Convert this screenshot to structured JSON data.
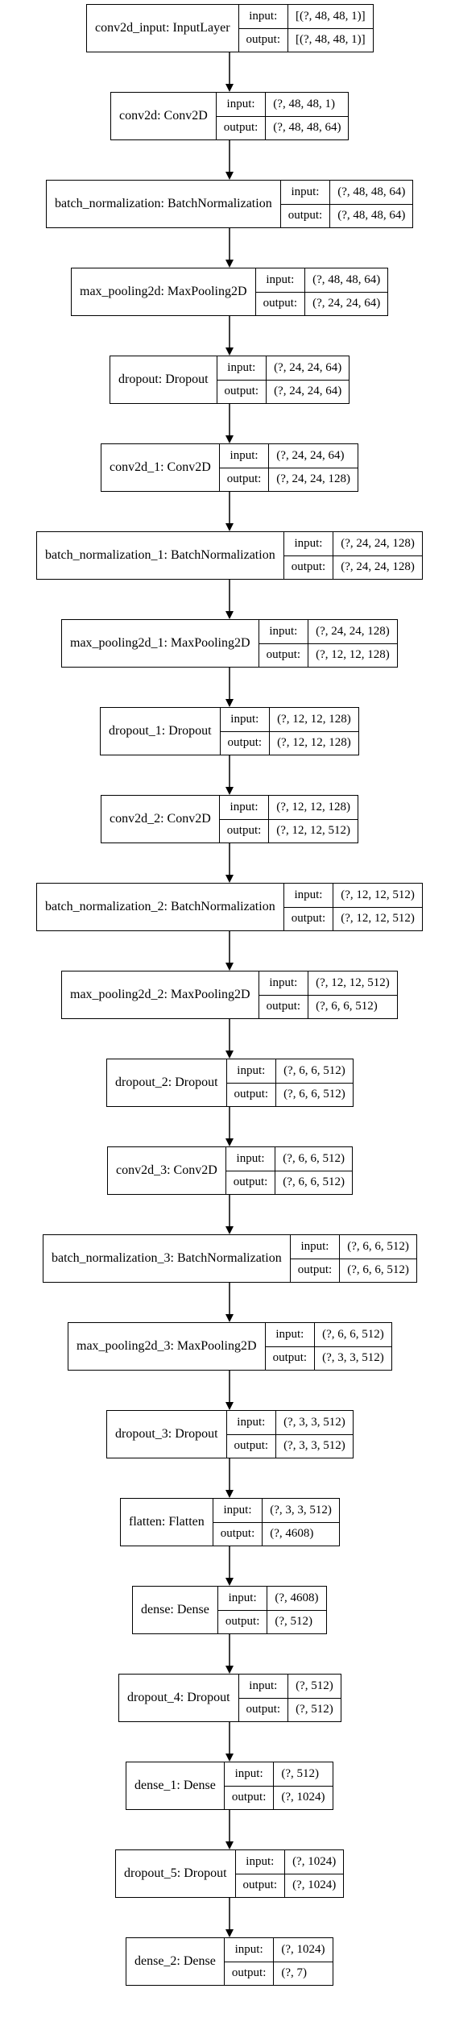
{
  "io_labels": {
    "input": "input:",
    "output": "output:"
  },
  "layers": [
    {
      "name": "conv2d_input: InputLayer",
      "input": "[(?, 48, 48, 1)]",
      "output": "[(?, 48, 48, 1)]"
    },
    {
      "name": "conv2d: Conv2D",
      "input": "(?, 48, 48, 1)",
      "output": "(?, 48, 48, 64)"
    },
    {
      "name": "batch_normalization: BatchNormalization",
      "input": "(?, 48, 48, 64)",
      "output": "(?, 48, 48, 64)"
    },
    {
      "name": "max_pooling2d: MaxPooling2D",
      "input": "(?, 48, 48, 64)",
      "output": "(?, 24, 24, 64)"
    },
    {
      "name": "dropout: Dropout",
      "input": "(?, 24, 24, 64)",
      "output": "(?, 24, 24, 64)"
    },
    {
      "name": "conv2d_1: Conv2D",
      "input": "(?, 24, 24, 64)",
      "output": "(?, 24, 24, 128)"
    },
    {
      "name": "batch_normalization_1: BatchNormalization",
      "input": "(?, 24, 24, 128)",
      "output": "(?, 24, 24, 128)"
    },
    {
      "name": "max_pooling2d_1: MaxPooling2D",
      "input": "(?, 24, 24, 128)",
      "output": "(?, 12, 12, 128)"
    },
    {
      "name": "dropout_1: Dropout",
      "input": "(?, 12, 12, 128)",
      "output": "(?, 12, 12, 128)"
    },
    {
      "name": "conv2d_2: Conv2D",
      "input": "(?, 12, 12, 128)",
      "output": "(?, 12, 12, 512)"
    },
    {
      "name": "batch_normalization_2: BatchNormalization",
      "input": "(?, 12, 12, 512)",
      "output": "(?, 12, 12, 512)"
    },
    {
      "name": "max_pooling2d_2: MaxPooling2D",
      "input": "(?, 12, 12, 512)",
      "output": "(?, 6, 6, 512)"
    },
    {
      "name": "dropout_2: Dropout",
      "input": "(?, 6, 6, 512)",
      "output": "(?, 6, 6, 512)"
    },
    {
      "name": "conv2d_3: Conv2D",
      "input": "(?, 6, 6, 512)",
      "output": "(?, 6, 6, 512)"
    },
    {
      "name": "batch_normalization_3: BatchNormalization",
      "input": "(?, 6, 6, 512)",
      "output": "(?, 6, 6, 512)"
    },
    {
      "name": "max_pooling2d_3: MaxPooling2D",
      "input": "(?, 6, 6, 512)",
      "output": "(?, 3, 3, 512)"
    },
    {
      "name": "dropout_3: Dropout",
      "input": "(?, 3, 3, 512)",
      "output": "(?, 3, 3, 512)"
    },
    {
      "name": "flatten: Flatten",
      "input": "(?, 3, 3, 512)",
      "output": "(?, 4608)"
    },
    {
      "name": "dense: Dense",
      "input": "(?, 4608)",
      "output": "(?, 512)"
    },
    {
      "name": "dropout_4: Dropout",
      "input": "(?, 512)",
      "output": "(?, 512)"
    },
    {
      "name": "dense_1: Dense",
      "input": "(?, 512)",
      "output": "(?, 1024)"
    },
    {
      "name": "dropout_5: Dropout",
      "input": "(?, 1024)",
      "output": "(?, 1024)"
    },
    {
      "name": "dense_2: Dense",
      "input": "(?, 1024)",
      "output": "(?, 7)"
    }
  ]
}
